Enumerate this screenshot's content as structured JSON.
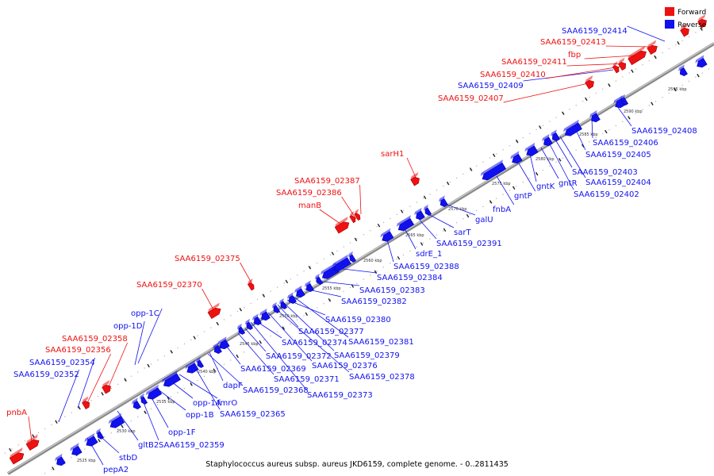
{
  "caption": "Staphylococcus aureus subsp. aureus JKD6159, complete genome. - 0..2811435",
  "legend": {
    "forward": {
      "label": "Forward",
      "color": "#ee1111"
    },
    "reverse": {
      "label": "Reverse",
      "color": "#1111ee"
    }
  },
  "scale_ticks": [
    "2525 kbp",
    "2530 kbp",
    "2535 kbp",
    "2540 kbp",
    "2545 kbp",
    "2550 kbp",
    "2555 kbp",
    "2560 kbp",
    "2565 kbp",
    "2570 kbp",
    "2575 kbp",
    "2580 kbp",
    "2585 kbp",
    "2590 kbp",
    "2595 kbp"
  ],
  "genes": [
    {
      "name": "pnbA",
      "strand": "forward"
    },
    {
      "name": "SAA6159_02352",
      "strand": "reverse"
    },
    {
      "name": "SAA6159_02354",
      "strand": "reverse"
    },
    {
      "name": "SAA6159_02356",
      "strand": "forward"
    },
    {
      "name": "SAA6159_02358",
      "strand": "forward"
    },
    {
      "name": "opp-1D",
      "strand": "reverse"
    },
    {
      "name": "opp-1C",
      "strand": "reverse"
    },
    {
      "name": "SAA6159_02370",
      "strand": "forward"
    },
    {
      "name": "SAA6159_02375",
      "strand": "forward"
    },
    {
      "name": "manB",
      "strand": "forward"
    },
    {
      "name": "SAA6159_02386",
      "strand": "forward"
    },
    {
      "name": "SAA6159_02387",
      "strand": "forward"
    },
    {
      "name": "sarH1",
      "strand": "forward"
    },
    {
      "name": "SAA6159_02407",
      "strand": "forward"
    },
    {
      "name": "SAA6159_02409",
      "strand": "reverse"
    },
    {
      "name": "SAA6159_02410",
      "strand": "forward"
    },
    {
      "name": "SAA6159_02411",
      "strand": "forward"
    },
    {
      "name": "fbp",
      "strand": "forward"
    },
    {
      "name": "SAA6159_02413",
      "strand": "forward"
    },
    {
      "name": "SAA6159_02414",
      "strand": "reverse"
    },
    {
      "name": "pepA2",
      "strand": "reverse"
    },
    {
      "name": "stbD",
      "strand": "reverse"
    },
    {
      "name": "gltB2",
      "strand": "reverse"
    },
    {
      "name": "SAA6159_02359",
      "strand": "reverse"
    },
    {
      "name": "opp-1F",
      "strand": "reverse"
    },
    {
      "name": "opp-1B",
      "strand": "reverse"
    },
    {
      "name": "opp-1A",
      "strand": "reverse"
    },
    {
      "name": "fmrO",
      "strand": "reverse"
    },
    {
      "name": "SAA6159_02365",
      "strand": "reverse"
    },
    {
      "name": "SAA6159_02368",
      "strand": "reverse"
    },
    {
      "name": "dapF",
      "strand": "reverse"
    },
    {
      "name": "SAA6159_02369",
      "strand": "reverse"
    },
    {
      "name": "SAA6159_02371",
      "strand": "reverse"
    },
    {
      "name": "SAA6159_02373",
      "strand": "reverse"
    },
    {
      "name": "SAA6159_02372",
      "strand": "reverse"
    },
    {
      "name": "SAA6159_02374",
      "strand": "reverse"
    },
    {
      "name": "SAA6159_02376",
      "strand": "reverse"
    },
    {
      "name": "SAA6159_02378",
      "strand": "reverse"
    },
    {
      "name": "SAA6159_02377",
      "strand": "reverse"
    },
    {
      "name": "SAA6159_02379",
      "strand": "reverse"
    },
    {
      "name": "SAA6159_02380",
      "strand": "reverse"
    },
    {
      "name": "SAA6159_02381",
      "strand": "reverse"
    },
    {
      "name": "SAA6159_02382",
      "strand": "reverse"
    },
    {
      "name": "SAA6159_02383",
      "strand": "reverse"
    },
    {
      "name": "SAA6159_02384",
      "strand": "reverse"
    },
    {
      "name": "SAA6159_02388",
      "strand": "reverse"
    },
    {
      "name": "sdrE_1",
      "strand": "reverse"
    },
    {
      "name": "SAA6159_02391",
      "strand": "reverse"
    },
    {
      "name": "sarT",
      "strand": "reverse"
    },
    {
      "name": "galU",
      "strand": "reverse"
    },
    {
      "name": "fnbA",
      "strand": "reverse"
    },
    {
      "name": "gntP",
      "strand": "reverse"
    },
    {
      "name": "gntK",
      "strand": "reverse"
    },
    {
      "name": "gntR",
      "strand": "reverse"
    },
    {
      "name": "SAA6159_02402",
      "strand": "reverse"
    },
    {
      "name": "SAA6159_02403",
      "strand": "reverse"
    },
    {
      "name": "SAA6159_02404",
      "strand": "reverse"
    },
    {
      "name": "SAA6159_02405",
      "strand": "reverse"
    },
    {
      "name": "SAA6159_02406",
      "strand": "reverse"
    },
    {
      "name": "SAA6159_02408",
      "strand": "reverse"
    }
  ]
}
